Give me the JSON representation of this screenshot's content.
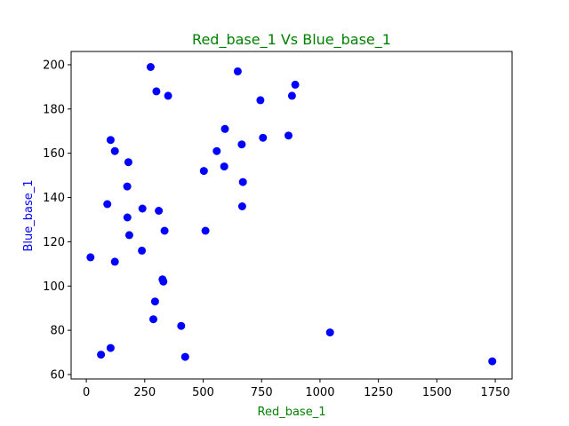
{
  "chart_data": {
    "type": "scatter",
    "title": "Red_base_1 Vs Blue_base_1",
    "xlabel": "Red_base_1",
    "ylabel": "Blue_base_1",
    "xlim": [
      -65,
      1822
    ],
    "ylim": [
      58,
      206
    ],
    "xticks": [
      0,
      250,
      500,
      750,
      1000,
      1250,
      1500,
      1750
    ],
    "yticks": [
      60,
      80,
      100,
      120,
      140,
      160,
      180,
      200
    ],
    "grid": false,
    "colors": {
      "points": "#0000ff",
      "title": "#008000",
      "xlabel": "#008000",
      "ylabel": "#0000ff"
    },
    "series": [
      {
        "x": [
          275,
          648,
          300,
          350,
          894,
          745,
          880,
          593,
          104,
          865,
          756,
          665,
          122,
          558,
          180,
          503,
          590,
          670,
          175,
          90,
          667,
          240,
          310,
          176,
          335,
          510,
          184,
          238,
          18,
          122,
          326,
          330,
          294,
          406,
          287,
          1043,
          104,
          63,
          423,
          1737
        ],
        "y": [
          199,
          197,
          188,
          186,
          191,
          184,
          186,
          171,
          166,
          168,
          167,
          164,
          161,
          161,
          156,
          152,
          154,
          147,
          145,
          137,
          136,
          135,
          134,
          131,
          125,
          125,
          123,
          116,
          113,
          111,
          103,
          102,
          93,
          82,
          85,
          79,
          72,
          69,
          68,
          66
        ]
      }
    ]
  }
}
